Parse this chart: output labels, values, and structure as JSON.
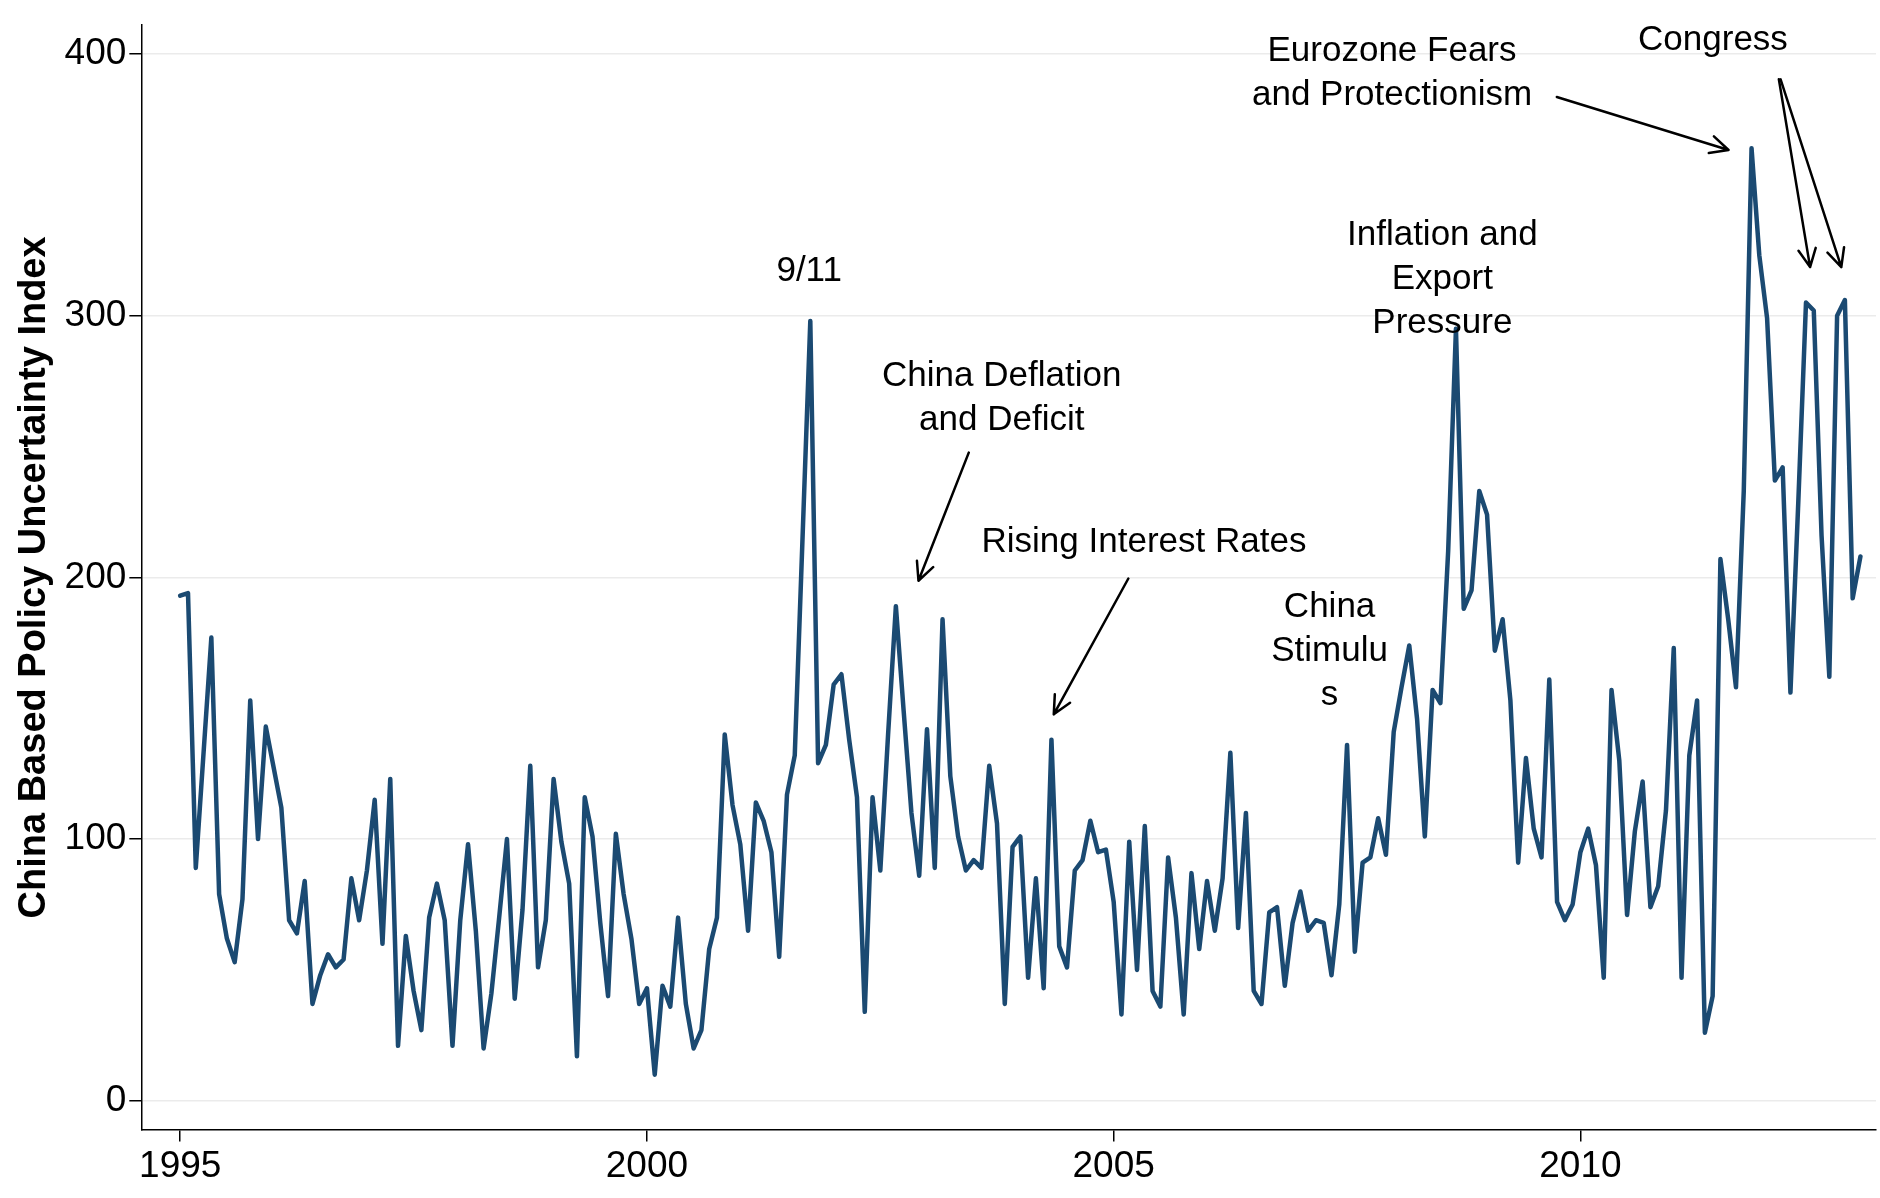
{
  "chart_data": {
    "type": "line",
    "ylabel": "China Based Policy Uncertainty Index",
    "color": "#1b4a72",
    "line_style": "solid",
    "marker": "none",
    "legend": false,
    "grid": "y",
    "xlim": [
      "1994-08",
      "2013-03"
    ],
    "xticks": [
      "1995",
      "2000",
      "2005",
      "2010"
    ],
    "ylim": [
      -11,
      411
    ],
    "yticks": [
      0,
      100,
      200,
      300,
      400
    ],
    "x": [
      "1995-01",
      "1995-02",
      "1995-03",
      "1995-05",
      "1995-06",
      "1995-07",
      "1995-08",
      "1995-09",
      "1995-10",
      "1995-11",
      "1995-12",
      "1996-02",
      "1996-03",
      "1996-04",
      "1996-05",
      "1996-06",
      "1996-07",
      "1996-08",
      "1996-09",
      "1996-10",
      "1996-11",
      "1996-12",
      "1997-01",
      "1997-02",
      "1997-03",
      "1997-04",
      "1997-05",
      "1997-06",
      "1997-07",
      "1997-08",
      "1997-09",
      "1997-10",
      "1997-11",
      "1997-12",
      "1998-01",
      "1998-02",
      "1998-03",
      "1998-04",
      "1998-05",
      "1998-06",
      "1998-07",
      "1998-08",
      "1998-09",
      "1998-10",
      "1998-11",
      "1998-12",
      "1999-01",
      "1999-02",
      "1999-03",
      "1999-04",
      "1999-05",
      "1999-06",
      "1999-07",
      "1999-08",
      "1999-09",
      "1999-10",
      "1999-11",
      "1999-12",
      "2000-01",
      "2000-02",
      "2000-03",
      "2000-04",
      "2000-05",
      "2000-06",
      "2000-07",
      "2000-08",
      "2000-09",
      "2000-10",
      "2000-11",
      "2000-12",
      "2001-01",
      "2001-02",
      "2001-03",
      "2001-04",
      "2001-05",
      "2001-06",
      "2001-07",
      "2001-08",
      "2001-10",
      "2001-11",
      "2001-12",
      "2002-01",
      "2002-02",
      "2002-03",
      "2002-04",
      "2002-05",
      "2002-06",
      "2002-07",
      "2002-08",
      "2002-09",
      "2002-10",
      "2002-11",
      "2002-12",
      "2003-01",
      "2003-02",
      "2003-03",
      "2003-04",
      "2003-05",
      "2003-06",
      "2003-07",
      "2003-08",
      "2003-09",
      "2003-10",
      "2003-11",
      "2003-12",
      "2004-01",
      "2004-02",
      "2004-03",
      "2004-04",
      "2004-05",
      "2004-06",
      "2004-07",
      "2004-08",
      "2004-09",
      "2004-10",
      "2004-11",
      "2004-12",
      "2005-01",
      "2005-02",
      "2005-03",
      "2005-04",
      "2005-05",
      "2005-06",
      "2005-07",
      "2005-08",
      "2005-09",
      "2005-10",
      "2005-11",
      "2005-12",
      "2006-01",
      "2006-02",
      "2006-03",
      "2006-04",
      "2006-05",
      "2006-06",
      "2006-07",
      "2006-08",
      "2006-09",
      "2006-10",
      "2006-11",
      "2006-12",
      "2007-01",
      "2007-02",
      "2007-03",
      "2007-04",
      "2007-05",
      "2007-06",
      "2007-07",
      "2007-08",
      "2007-09",
      "2007-10",
      "2007-11",
      "2007-12",
      "2008-01",
      "2008-02",
      "2008-03",
      "2008-04",
      "2008-05",
      "2008-06",
      "2008-07",
      "2008-08",
      "2008-09",
      "2008-10",
      "2008-11",
      "2008-12",
      "2009-01",
      "2009-02",
      "2009-03",
      "2009-04",
      "2009-05",
      "2009-06",
      "2009-07",
      "2009-08",
      "2009-09",
      "2009-10",
      "2009-11",
      "2009-12",
      "2010-01",
      "2010-02",
      "2010-03",
      "2010-04",
      "2010-05",
      "2010-06",
      "2010-07",
      "2010-08",
      "2010-09",
      "2010-10",
      "2010-11",
      "2010-12",
      "2011-01",
      "2011-02",
      "2011-03",
      "2011-04",
      "2011-05",
      "2011-06",
      "2011-07",
      "2011-08",
      "2011-09",
      "2011-10",
      "2011-11",
      "2011-12",
      "2012-01",
      "2012-02",
      "2012-03",
      "2012-04",
      "2012-05",
      "2012-06",
      "2012-07",
      "2012-08",
      "2012-09",
      "2012-10",
      "2012-11",
      "2012-12",
      "2013-01"
    ],
    "values": [
      193,
      194,
      89,
      177,
      79,
      62,
      53,
      77,
      153,
      100,
      143,
      112,
      69,
      64,
      84,
      37,
      48,
      56,
      51,
      54,
      85,
      69,
      88,
      115,
      60,
      123,
      21,
      63,
      42,
      27,
      70,
      83,
      69,
      21,
      69,
      98,
      65,
      20,
      41,
      70,
      100,
      39,
      73,
      128,
      51,
      69,
      123,
      99,
      83,
      17,
      116,
      101,
      68,
      40,
      102,
      79,
      62,
      37,
      43,
      10,
      44,
      36,
      70,
      37,
      20,
      27,
      58,
      70,
      140,
      113,
      98,
      65,
      114,
      107,
      95,
      55,
      117,
      132,
      298,
      129,
      136,
      159,
      163,
      138,
      116,
      34,
      116,
      88,
      140,
      189,
      149,
      110,
      86,
      142,
      89,
      184,
      124,
      101,
      88,
      92,
      89,
      128,
      106,
      37,
      97,
      101,
      47,
      85,
      43,
      138,
      59,
      51,
      88,
      92,
      107,
      95,
      96,
      76,
      33,
      99,
      50,
      105,
      42,
      36,
      93,
      70,
      33,
      87,
      58,
      84,
      65,
      85,
      133,
      66,
      110,
      42,
      37,
      72,
      74,
      44,
      68,
      80,
      65,
      69,
      68,
      48,
      75,
      136,
      57,
      91,
      93,
      108,
      94,
      141,
      158,
      174,
      146,
      101,
      157,
      152,
      210,
      295,
      188,
      195,
      233,
      224,
      172,
      184,
      153,
      91,
      131,
      104,
      93,
      161,
      76,
      69,
      75,
      95,
      104,
      90,
      47,
      157,
      130,
      71,
      103,
      122,
      74,
      82,
      111,
      173,
      47,
      132,
      153,
      26,
      40,
      207,
      184,
      158,
      233,
      364,
      323,
      299,
      237,
      242,
      156,
      228,
      305,
      302,
      216,
      162,
      300,
      306,
      192,
      208
    ],
    "annotations": [
      "9/11",
      "China Deflation and Deficit",
      "Rising Interest Rates",
      "China Stimulus",
      "Inflation and Export Pressure",
      "Eurozone Fears and Protectionism",
      "Congress"
    ]
  }
}
